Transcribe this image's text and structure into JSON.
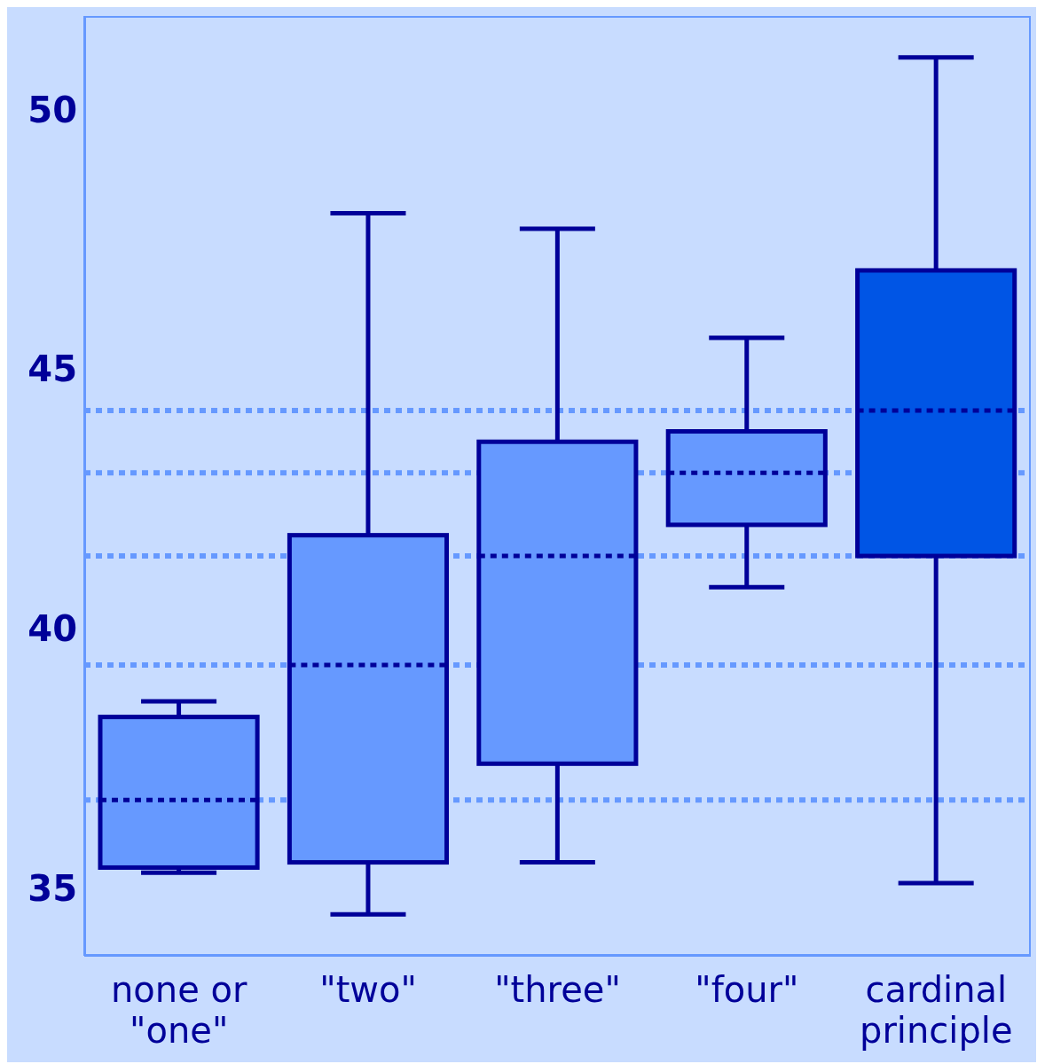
{
  "chart_data": {
    "type": "box",
    "categories": [
      "none or \"one\"",
      "\"two\"",
      "\"three\"",
      "\"four\"",
      "cardinal principle"
    ],
    "boxes": [
      {
        "low": 35.3,
        "q1": 35.4,
        "median": 36.7,
        "q3": 38.3,
        "high": 38.6
      },
      {
        "low": 34.5,
        "q1": 35.5,
        "median": 39.3,
        "q3": 41.8,
        "high": 48.0
      },
      {
        "low": 35.5,
        "q1": 37.4,
        "median": 41.4,
        "q3": 43.6,
        "high": 47.7
      },
      {
        "low": 40.8,
        "q1": 42.0,
        "median": 43.0,
        "q3": 43.8,
        "high": 45.6
      },
      {
        "low": 35.1,
        "q1": 41.4,
        "median": 44.2,
        "q3": 46.9,
        "high": 51.0
      }
    ],
    "colors": [
      "#6699ff",
      "#6699ff",
      "#6699ff",
      "#6699ff",
      "#0055e5"
    ],
    "ylim": [
      33.7,
      51.8
    ],
    "yticks": [
      35,
      40,
      45,
      50
    ],
    "grid": false,
    "ref_lines": [
      {
        "axis": "y",
        "value": 36.7,
        "color": "#6699ff",
        "line_style": "dotted"
      },
      {
        "axis": "y",
        "value": 39.3,
        "color": "#6699ff",
        "line_style": "dotted"
      },
      {
        "axis": "y",
        "value": 41.4,
        "color": "#6699ff",
        "line_style": "dotted"
      },
      {
        "axis": "y",
        "value": 43.0,
        "color": "#6699ff",
        "line_style": "dotted"
      },
      {
        "axis": "y",
        "value": 44.2,
        "color": "#6699ff",
        "line_style": "dotted"
      }
    ]
  }
}
